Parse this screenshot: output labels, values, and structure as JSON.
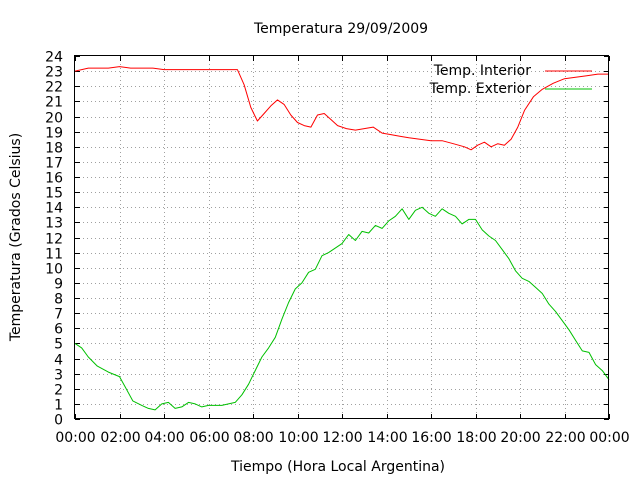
{
  "chart_data": {
    "type": "line",
    "title": "Temperatura 29/09/2009",
    "xlabel": "Tiempo (Hora Local Argentina)",
    "ylabel": "Temperatura (Grados Celsius)",
    "xlim": [
      0,
      24
    ],
    "ylim": [
      0,
      24
    ],
    "x_ticks": [
      "00:00",
      "02:00",
      "04:00",
      "06:00",
      "08:00",
      "10:00",
      "12:00",
      "14:00",
      "16:00",
      "18:00",
      "20:00",
      "22:00",
      "00:00"
    ],
    "y_ticks": [
      0,
      1,
      2,
      3,
      4,
      5,
      6,
      7,
      8,
      9,
      10,
      11,
      12,
      13,
      14,
      15,
      16,
      17,
      18,
      19,
      20,
      21,
      22,
      23,
      24
    ],
    "grid": true,
    "legend": "top-right",
    "series": [
      {
        "name": "Temp. Interior",
        "color": "#ff0000",
        "x": [
          0,
          0.3,
          0.6,
          1.0,
          1.5,
          2.0,
          2.5,
          3.0,
          3.5,
          4.0,
          4.5,
          5.0,
          5.5,
          6.0,
          6.5,
          7.0,
          7.3,
          7.6,
          7.9,
          8.2,
          8.5,
          8.8,
          9.1,
          9.4,
          9.7,
          10.0,
          10.3,
          10.6,
          10.9,
          11.2,
          11.5,
          11.8,
          12.2,
          12.6,
          13.0,
          13.4,
          13.8,
          14.2,
          14.6,
          15.0,
          15.5,
          16.0,
          16.5,
          17.0,
          17.5,
          17.8,
          18.1,
          18.4,
          18.7,
          19.0,
          19.3,
          19.6,
          19.9,
          20.2,
          20.6,
          21.0,
          21.5,
          22.0,
          22.5,
          23.0,
          23.5,
          24.0
        ],
        "values": [
          23.0,
          23.1,
          23.2,
          23.2,
          23.2,
          23.3,
          23.2,
          23.2,
          23.2,
          23.1,
          23.1,
          23.1,
          23.1,
          23.1,
          23.1,
          23.1,
          23.1,
          22.1,
          20.6,
          19.7,
          20.2,
          20.7,
          21.1,
          20.8,
          20.1,
          19.6,
          19.4,
          19.3,
          20.1,
          20.2,
          19.8,
          19.4,
          19.2,
          19.1,
          19.2,
          19.3,
          18.9,
          18.8,
          18.7,
          18.6,
          18.5,
          18.4,
          18.4,
          18.2,
          18.0,
          17.8,
          18.1,
          18.3,
          18.0,
          18.2,
          18.1,
          18.5,
          19.3,
          20.4,
          21.3,
          21.8,
          22.2,
          22.5,
          22.6,
          22.7,
          22.8,
          22.8
        ]
      },
      {
        "name": "Temp. Exterior",
        "color": "#00c000",
        "x": [
          0,
          0.3,
          0.6,
          1.0,
          1.5,
          2.0,
          2.3,
          2.6,
          3.0,
          3.3,
          3.6,
          3.9,
          4.2,
          4.5,
          4.8,
          5.1,
          5.4,
          5.7,
          6.0,
          6.3,
          6.6,
          6.9,
          7.2,
          7.5,
          7.8,
          8.1,
          8.4,
          8.7,
          9.0,
          9.3,
          9.6,
          9.9,
          10.2,
          10.5,
          10.8,
          11.1,
          11.4,
          11.7,
          12.0,
          12.3,
          12.6,
          12.9,
          13.2,
          13.5,
          13.8,
          14.1,
          14.4,
          14.7,
          15.0,
          15.3,
          15.6,
          15.9,
          16.2,
          16.5,
          16.8,
          17.1,
          17.4,
          17.7,
          18.0,
          18.3,
          18.6,
          18.9,
          19.2,
          19.5,
          19.8,
          20.1,
          20.4,
          20.7,
          21.0,
          21.3,
          21.6,
          21.9,
          22.2,
          22.5,
          22.8,
          23.1,
          23.4,
          23.7,
          24.0
        ],
        "values": [
          5.0,
          4.7,
          4.1,
          3.5,
          3.1,
          2.8,
          2.0,
          1.2,
          0.9,
          0.7,
          0.6,
          1.0,
          1.1,
          0.7,
          0.8,
          1.1,
          1.0,
          0.8,
          0.9,
          0.9,
          0.9,
          1.0,
          1.1,
          1.6,
          2.3,
          3.2,
          4.1,
          4.7,
          5.4,
          6.6,
          7.7,
          8.6,
          9.0,
          9.7,
          9.9,
          10.8,
          11.0,
          11.3,
          11.6,
          12.2,
          11.8,
          12.4,
          12.3,
          12.8,
          12.6,
          13.1,
          13.4,
          13.9,
          13.2,
          13.8,
          14.0,
          13.6,
          13.4,
          13.9,
          13.6,
          13.4,
          12.9,
          13.2,
          13.2,
          12.5,
          12.1,
          11.8,
          11.2,
          10.6,
          9.8,
          9.3,
          9.1,
          8.7,
          8.3,
          7.6,
          7.1,
          6.5,
          5.9,
          5.2,
          4.5,
          4.4,
          3.6,
          3.2,
          2.6
        ]
      }
    ]
  }
}
